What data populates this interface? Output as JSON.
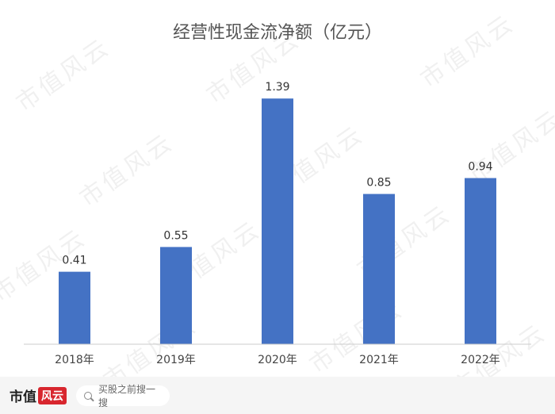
{
  "chart_data": {
    "type": "bar",
    "title": "经营性现金流净额（亿元）",
    "categories": [
      "2018年",
      "2019年",
      "2020年",
      "2021年",
      "2022年"
    ],
    "values": [
      0.41,
      0.55,
      1.39,
      0.85,
      0.94
    ],
    "value_labels": [
      "0.41",
      "0.55",
      "1.39",
      "0.85",
      "0.94"
    ],
    "ylim": [
      0,
      1.4
    ],
    "grid": false,
    "legend": "none",
    "bar_color": "#4472c4"
  },
  "watermark": {
    "text": "市值风云"
  },
  "footer": {
    "brand_text": "市值",
    "brand_logo_text": "风云",
    "search_placeholder": "买股之前搜一搜"
  }
}
